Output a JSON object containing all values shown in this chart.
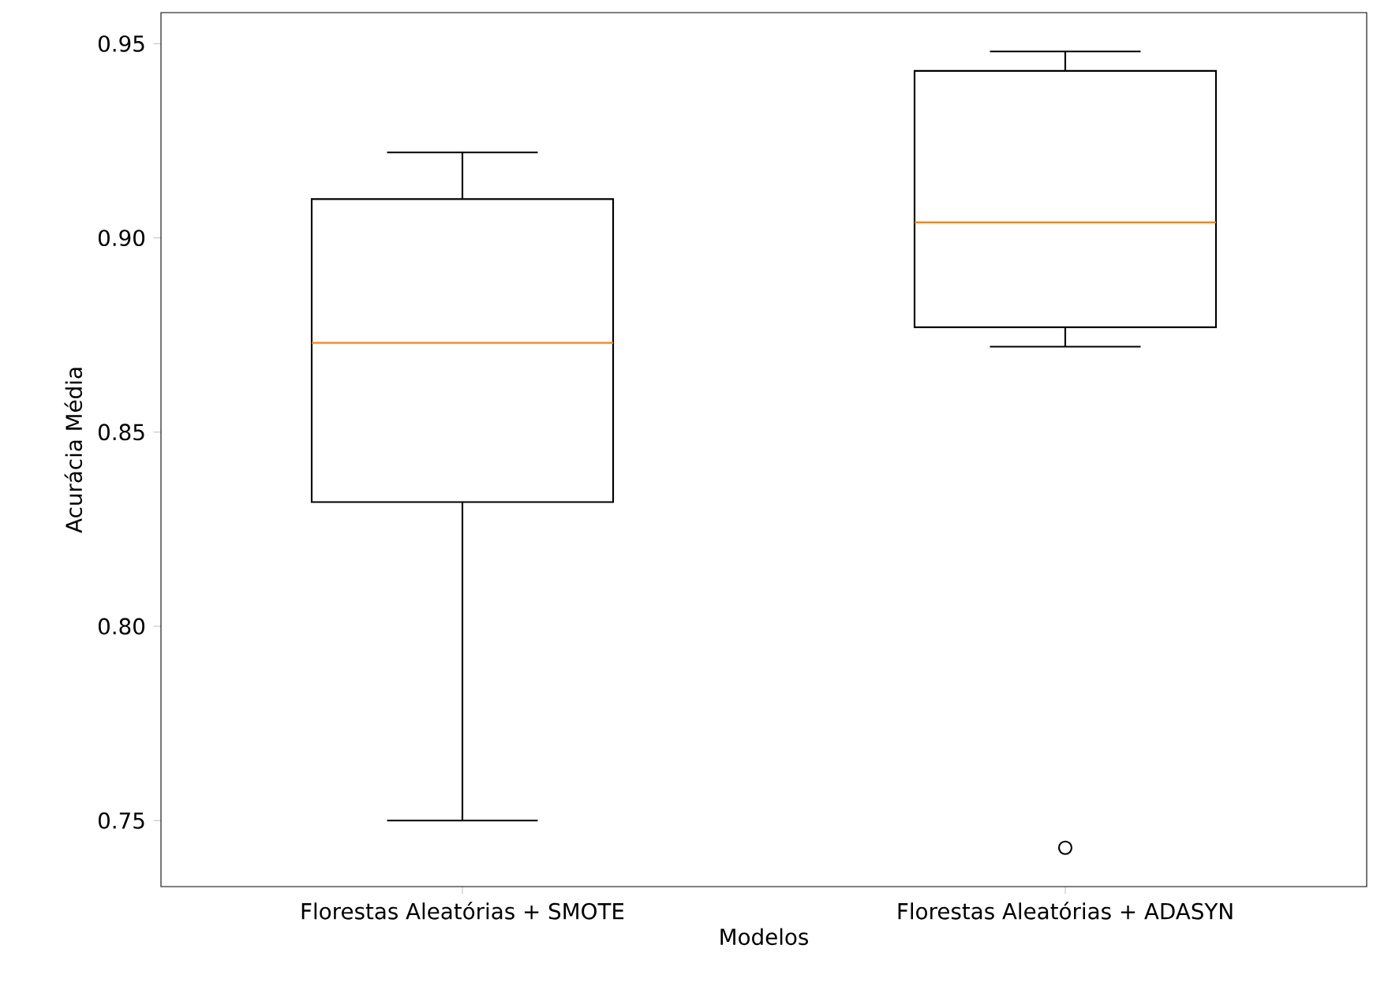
{
  "chart_data": {
    "type": "box",
    "xlabel": "Modelos",
    "ylabel": "Acurácia Média",
    "categories": [
      "Florestas Aleatórias + SMOTE",
      "Florestas Aleatórias + ADASYN"
    ],
    "color": "#000000",
    "marker": "circle",
    "boxes": [
      {
        "low": 0.75,
        "q1": 0.832,
        "median": 0.873,
        "q3": 0.91,
        "high": 0.922
      },
      {
        "low": 0.872,
        "q1": 0.877,
        "median": 0.904,
        "q3": 0.943,
        "high": 0.948,
        "outliers": [
          0.743
        ]
      }
    ],
    "ylim": [
      0.733,
      0.958
    ],
    "yticks": [
      0.75,
      {
        "value": 0.8,
        "label": "0.80"
      },
      0.85,
      {
        "value": 0.9,
        "label": "0.90"
      },
      0.95
    ]
  }
}
